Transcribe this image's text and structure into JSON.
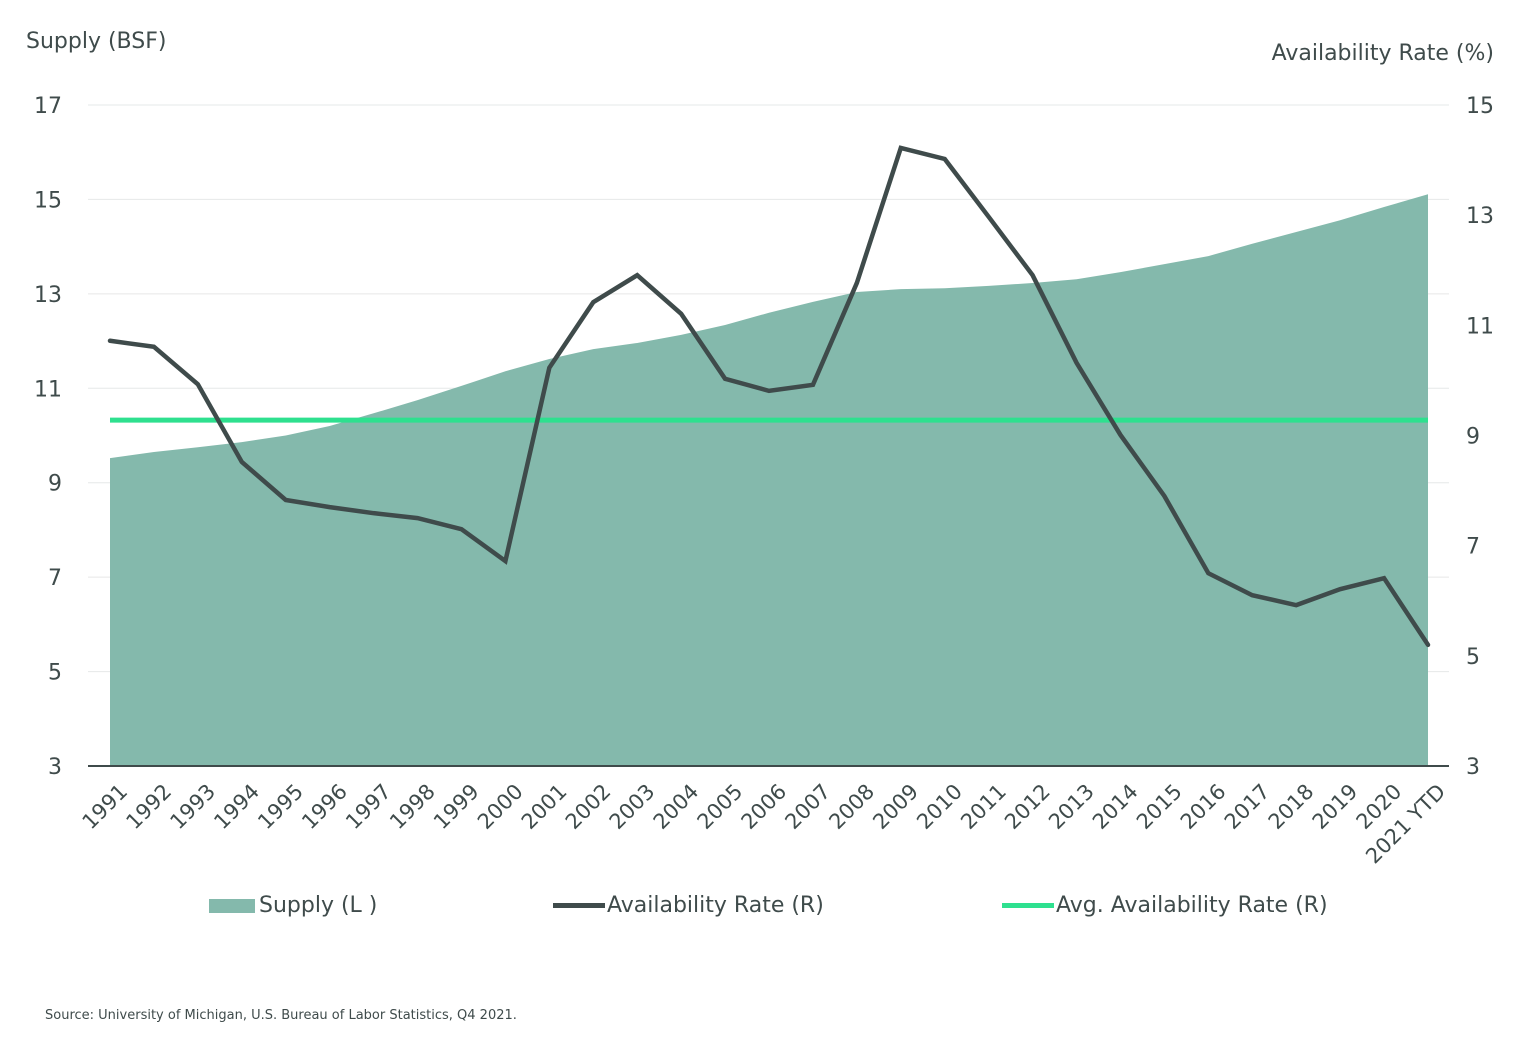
{
  "chart_data": {
    "type": "area+line",
    "categories": [
      "1991",
      "1992",
      "1993",
      "1994",
      "1995",
      "1996",
      "1997",
      "1998",
      "1999",
      "2000",
      "2001",
      "2002",
      "2003",
      "2004",
      "2005",
      "2006",
      "2007",
      "2008",
      "2009",
      "2010",
      "2011",
      "2012",
      "2013",
      "2014",
      "2015",
      "2016",
      "2017",
      "2018",
      "2019",
      "2020",
      "2021 YTD"
    ],
    "ylabel_left": "Supply (BSF)",
    "ylabel_right": "Availability Rate (%)",
    "ylim_left": [
      3,
      17
    ],
    "yticks_left": [
      3,
      5,
      7,
      9,
      11,
      13,
      15,
      17
    ],
    "ylim_right": [
      3,
      15
    ],
    "yticks_right": [
      3,
      5,
      7,
      9,
      11,
      13,
      15
    ],
    "grid": true,
    "legend_position": "bottom",
    "series": [
      {
        "name": "Supply (L)",
        "axis": "left",
        "type": "area",
        "color": "#84b9ac",
        "values": [
          9.52,
          9.65,
          9.75,
          9.86,
          10.0,
          10.2,
          10.47,
          10.75,
          11.05,
          11.36,
          11.62,
          11.83,
          11.96,
          12.13,
          12.34,
          12.6,
          12.83,
          13.04,
          13.1,
          13.12,
          13.17,
          13.23,
          13.31,
          13.46,
          13.63,
          13.8,
          14.06,
          14.31,
          14.56,
          14.84,
          15.11
        ]
      },
      {
        "name": "Availability Rate (R)",
        "axis": "right",
        "type": "line",
        "color": "#3f4b4b",
        "values": [
          10.72,
          10.61,
          9.93,
          8.52,
          7.83,
          7.7,
          7.59,
          7.5,
          7.3,
          6.72,
          10.23,
          11.42,
          11.91,
          11.21,
          10.03,
          9.81,
          9.92,
          11.77,
          14.22,
          14.02,
          12.97,
          11.91,
          10.32,
          9.01,
          7.9,
          6.5,
          6.1,
          5.92,
          6.21,
          6.41,
          5.2
        ]
      },
      {
        "name": "Avg. Availability Rate (R)",
        "axis": "right",
        "type": "line",
        "color": "#2ee08f",
        "values": [
          9.28,
          9.28,
          9.28,
          9.28,
          9.28,
          9.28,
          9.28,
          9.28,
          9.28,
          9.28,
          9.28,
          9.28,
          9.28,
          9.28,
          9.28,
          9.28,
          9.28,
          9.28,
          9.28,
          9.28,
          9.28,
          9.28,
          9.28,
          9.28,
          9.28,
          9.28,
          9.28,
          9.28,
          9.28,
          9.28,
          9.28
        ]
      }
    ]
  },
  "legend": {
    "supply": "Supply (L )",
    "rate": "Availability Rate (R)",
    "avg": "Avg. Availability Rate (R)"
  },
  "source": "Source: University of Michigan, U.S. Bureau of Labor Statistics, Q4 2021."
}
